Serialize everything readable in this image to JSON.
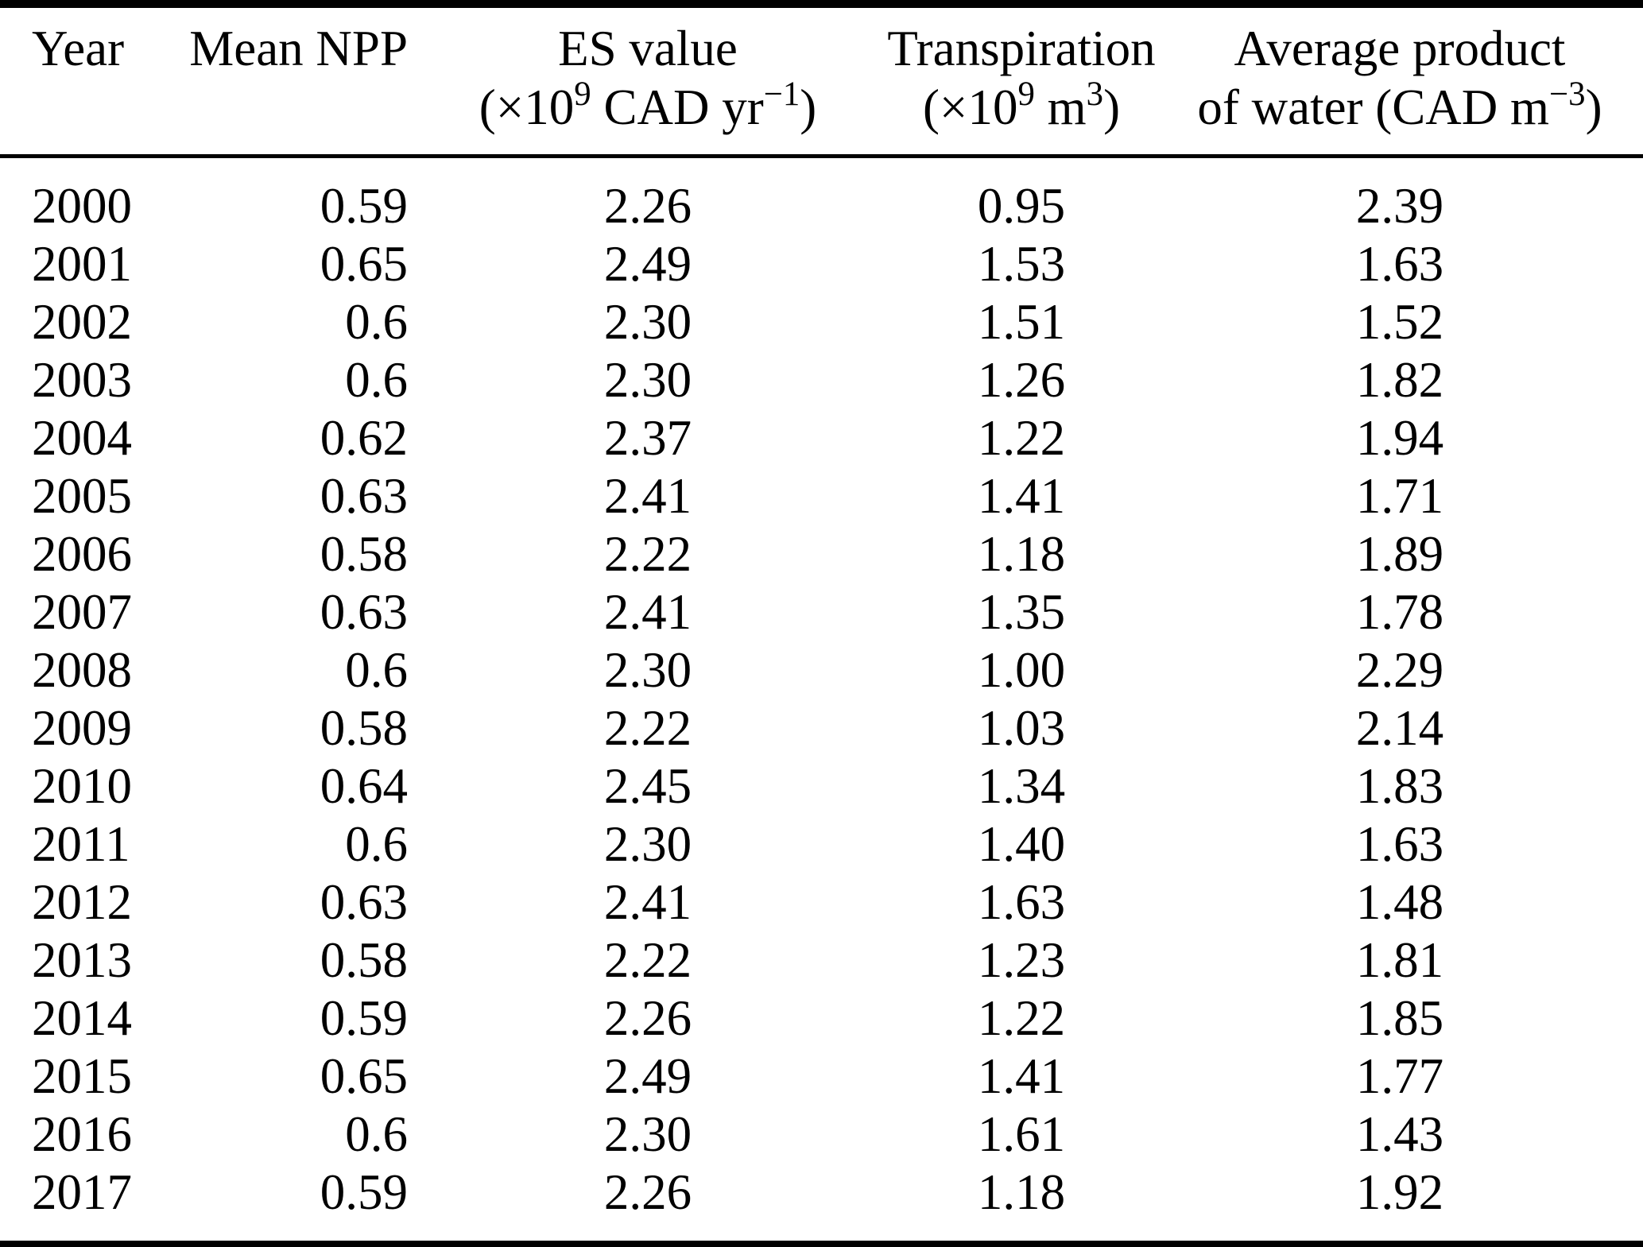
{
  "table": {
    "columns": [
      {
        "label": "Year",
        "unit": ""
      },
      {
        "label": "Mean NPP",
        "unit": ""
      },
      {
        "label": "ES value",
        "unit": "(×10^{9} CAD yr^{−1})"
      },
      {
        "label": "Transpiration",
        "unit": "(×10^{9} m^{3})"
      },
      {
        "label": "Average product",
        "unit": "of water (CAD m^{−3})"
      }
    ],
    "rows": [
      [
        "2000",
        "0.59",
        "2.26",
        "0.95",
        "2.39"
      ],
      [
        "2001",
        "0.65",
        "2.49",
        "1.53",
        "1.63"
      ],
      [
        "2002",
        "0.6",
        "2.30",
        "1.51",
        "1.52"
      ],
      [
        "2003",
        "0.6",
        "2.30",
        "1.26",
        "1.82"
      ],
      [
        "2004",
        "0.62",
        "2.37",
        "1.22",
        "1.94"
      ],
      [
        "2005",
        "0.63",
        "2.41",
        "1.41",
        "1.71"
      ],
      [
        "2006",
        "0.58",
        "2.22",
        "1.18",
        "1.89"
      ],
      [
        "2007",
        "0.63",
        "2.41",
        "1.35",
        "1.78"
      ],
      [
        "2008",
        "0.6",
        "2.30",
        "1.00",
        "2.29"
      ],
      [
        "2009",
        "0.58",
        "2.22",
        "1.03",
        "2.14"
      ],
      [
        "2010",
        "0.64",
        "2.45",
        "1.34",
        "1.83"
      ],
      [
        "2011",
        "0.6",
        "2.30",
        "1.40",
        "1.63"
      ],
      [
        "2012",
        "0.63",
        "2.41",
        "1.63",
        "1.48"
      ],
      [
        "2013",
        "0.58",
        "2.22",
        "1.23",
        "1.81"
      ],
      [
        "2014",
        "0.59",
        "2.26",
        "1.22",
        "1.85"
      ],
      [
        "2015",
        "0.65",
        "2.49",
        "1.41",
        "1.77"
      ],
      [
        "2016",
        "0.6",
        "2.30",
        "1.61",
        "1.43"
      ],
      [
        "2017",
        "0.59",
        "2.26",
        "1.18",
        "1.92"
      ]
    ]
  }
}
